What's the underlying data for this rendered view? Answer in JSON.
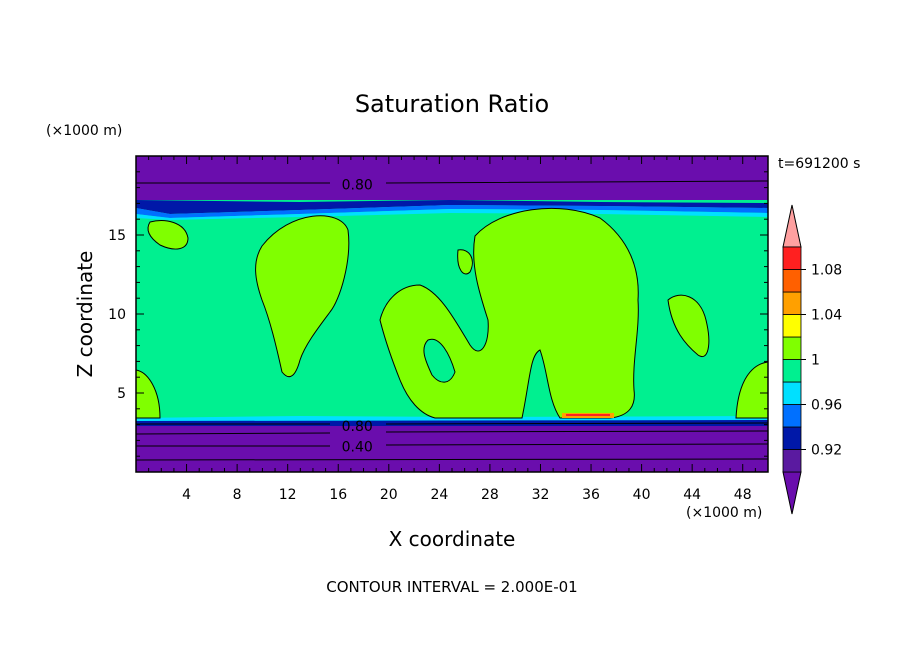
{
  "chart_data": {
    "type": "heatmap",
    "title": "Saturation Ratio",
    "xlabel": "X coordinate",
    "ylabel": "Z coordinate",
    "x_unit": "(×1000 m)",
    "y_unit": "(×1000 m)",
    "time_label": "t=691200 s",
    "footer": "CONTOUR INTERVAL = 2.000E-01",
    "xlim": [
      0,
      50
    ],
    "ylim": [
      0,
      20
    ],
    "x_ticks": [
      4,
      8,
      12,
      16,
      20,
      24,
      28,
      32,
      36,
      40,
      44,
      48
    ],
    "y_ticks": [
      5,
      10,
      15
    ],
    "contour_labels": [
      {
        "text": "0.80",
        "x": 17.5,
        "y": 18.2
      },
      {
        "text": "0.80",
        "x": 17.5,
        "y": 2.9
      },
      {
        "text": "0.40",
        "x": 17.5,
        "y": 1.6
      }
    ],
    "colorbar": {
      "labels": [
        "1.08",
        "1.04",
        "1",
        "0.96",
        "0.92"
      ],
      "bands": [
        {
          "lo": null,
          "hi": 0.9,
          "color": "#6a0dad"
        },
        {
          "lo": 0.9,
          "hi": 0.92,
          "color": "#5a1aa0"
        },
        {
          "lo": 0.92,
          "hi": 0.94,
          "color": "#0018a8"
        },
        {
          "lo": 0.94,
          "hi": 0.96,
          "color": "#0070ff"
        },
        {
          "lo": 0.96,
          "hi": 0.98,
          "color": "#00e0ff"
        },
        {
          "lo": 0.98,
          "hi": 1.0,
          "color": "#00f090"
        },
        {
          "lo": 1.0,
          "hi": 1.02,
          "color": "#80ff00"
        },
        {
          "lo": 1.02,
          "hi": 1.04,
          "color": "#ffff00"
        },
        {
          "lo": 1.04,
          "hi": 1.06,
          "color": "#ffa000"
        },
        {
          "lo": 1.06,
          "hi": 1.08,
          "color": "#ff6000"
        },
        {
          "lo": 1.08,
          "hi": 1.1,
          "color": "#ff2020"
        },
        {
          "lo": 1.1,
          "hi": null,
          "color": "#ffa0a0"
        }
      ]
    },
    "layers": [
      {
        "name": "lower",
        "z": [
          0,
          3.3
        ],
        "color": "#6a0dad"
      },
      {
        "name": "middle",
        "z": [
          3.3,
          17.0
        ],
        "color": "#00f090"
      },
      {
        "name": "upper",
        "z": [
          17.0,
          20
        ],
        "color": "#6a0dad"
      }
    ]
  }
}
